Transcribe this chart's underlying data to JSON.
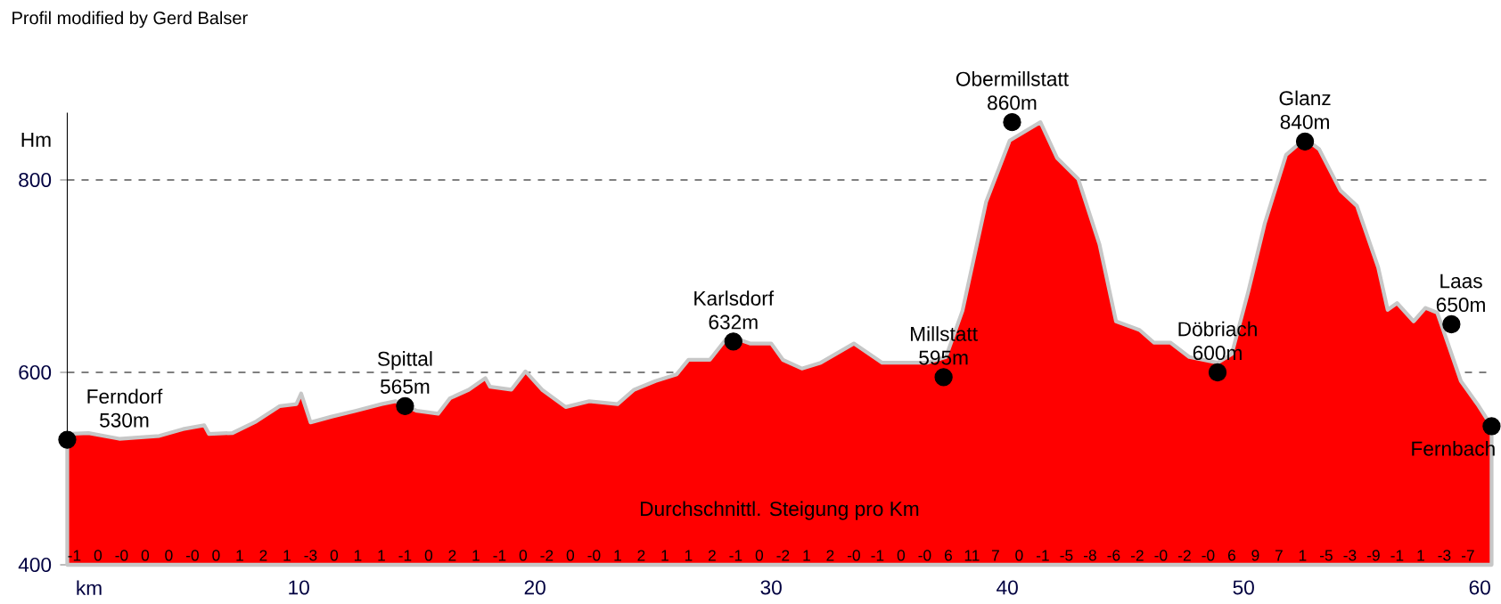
{
  "chart_data": {
    "type": "area",
    "title": "Profil modified by Gerd Balser",
    "xlabel": "km",
    "ylabel": "Hm",
    "xlim": [
      0.2,
      60.5
    ],
    "ylim": [
      400,
      870
    ],
    "xticks": [
      10,
      20,
      30,
      40,
      50,
      60
    ],
    "yticks": [
      400,
      600,
      800
    ],
    "grid": "y",
    "series": [
      {
        "type": "area",
        "color": "#ff0000",
        "x": [
          0.2,
          1.1,
          2.4,
          4.1,
          5.1,
          6.0,
          6.2,
          7.2,
          8.2,
          9.2,
          9.9,
          10.1,
          10.5,
          11.4,
          12.4,
          13.5,
          14.1,
          15.0,
          15.9,
          16.4,
          17.2,
          17.9,
          18.1,
          19.0,
          19.6,
          20.3,
          21.3,
          22.3,
          23.5,
          24.2,
          25.1,
          26.0,
          26.5,
          27.4,
          28.2,
          29.1,
          30.0,
          30.5,
          31.3,
          32.1,
          33.5,
          34.7,
          36.6,
          37.4,
          38.1,
          39.1,
          40.1,
          41.4,
          42.1,
          43.0,
          43.9,
          44.6,
          45.6,
          46.2,
          46.9,
          47.7,
          48.9,
          49.5,
          50.2,
          50.9,
          51.8,
          52.6,
          53.2,
          54.1,
          54.8,
          55.7,
          56.1,
          56.5,
          57.2,
          57.7,
          58.2,
          59.2,
          59.9,
          60.5
        ],
        "values": [
          536,
          537,
          531,
          534,
          541,
          545,
          536,
          537,
          549,
          565,
          567,
          578,
          548,
          554,
          560,
          567,
          570,
          560,
          557,
          573,
          582,
          594,
          585,
          582,
          601,
          582,
          564,
          570,
          567,
          582,
          591,
          598,
          613,
          613,
          638,
          630,
          630,
          613,
          604,
          610,
          630,
          610,
          610,
          616,
          664,
          777,
          841,
          860,
          823,
          801,
          733,
          653,
          644,
          631,
          631,
          616,
          610,
          619,
          684,
          755,
          826,
          843,
          832,
          789,
          773,
          709,
          665,
          672,
          653,
          667,
          662,
          591,
          567,
          544
        ]
      },
      {
        "type": "scatter",
        "color": "#000000",
        "marker": "circle",
        "x": [
          0.2,
          14.5,
          28.4,
          37.3,
          40.2,
          48.9,
          52.6,
          58.8,
          60.5
        ],
        "values": [
          530,
          565,
          632,
          595,
          860,
          600,
          840,
          650,
          544
        ],
        "value_labels": [
          "530m",
          "565m",
          "632m",
          "595m",
          "860m",
          "600m",
          "840m",
          "650m",
          null
        ]
      }
    ],
    "annotations": [
      "Durchschnittl. Steigung pro Km",
      {
        "text": "Ferndorf",
        "x": 0.2,
        "y": 530
      },
      {
        "text": "Spittal",
        "x": 14.5,
        "y": 565
      },
      {
        "text": "Karlsdorf",
        "x": 28.4,
        "y": 632
      },
      {
        "text": "Millstatt",
        "x": 37.3,
        "y": 595
      },
      {
        "text": "Obermillstatt",
        "x": 40.2,
        "y": 860
      },
      {
        "text": "Döbriach",
        "x": 48.9,
        "y": 600
      },
      {
        "text": "Glanz",
        "x": 52.6,
        "y": 840
      },
      {
        "text": "Laas",
        "x": 58.8,
        "y": 650
      },
      {
        "text": "Fernbach",
        "x": 60.5,
        "y": 544
      },
      "-1",
      "0",
      "-0",
      "0",
      "0",
      "-0",
      "0",
      "1",
      "2",
      "1",
      "-3",
      "0",
      "1",
      "1",
      "-1",
      "0",
      "2",
      "1",
      "-1",
      "0",
      "-2",
      "0",
      "-0",
      "1",
      "2",
      "1",
      "1",
      "2",
      "-1",
      "0",
      "-2",
      "1",
      "2",
      "-0",
      "-1",
      "0",
      "-0",
      "6",
      "11",
      "7",
      "0",
      "-1",
      "-5",
      "-8",
      "-6",
      "-2",
      "-0",
      "-2",
      "-0",
      "6",
      "9",
      "7",
      "1",
      "-5",
      "-3",
      "-9",
      "-1",
      "1",
      "-3",
      "-7"
    ]
  }
}
